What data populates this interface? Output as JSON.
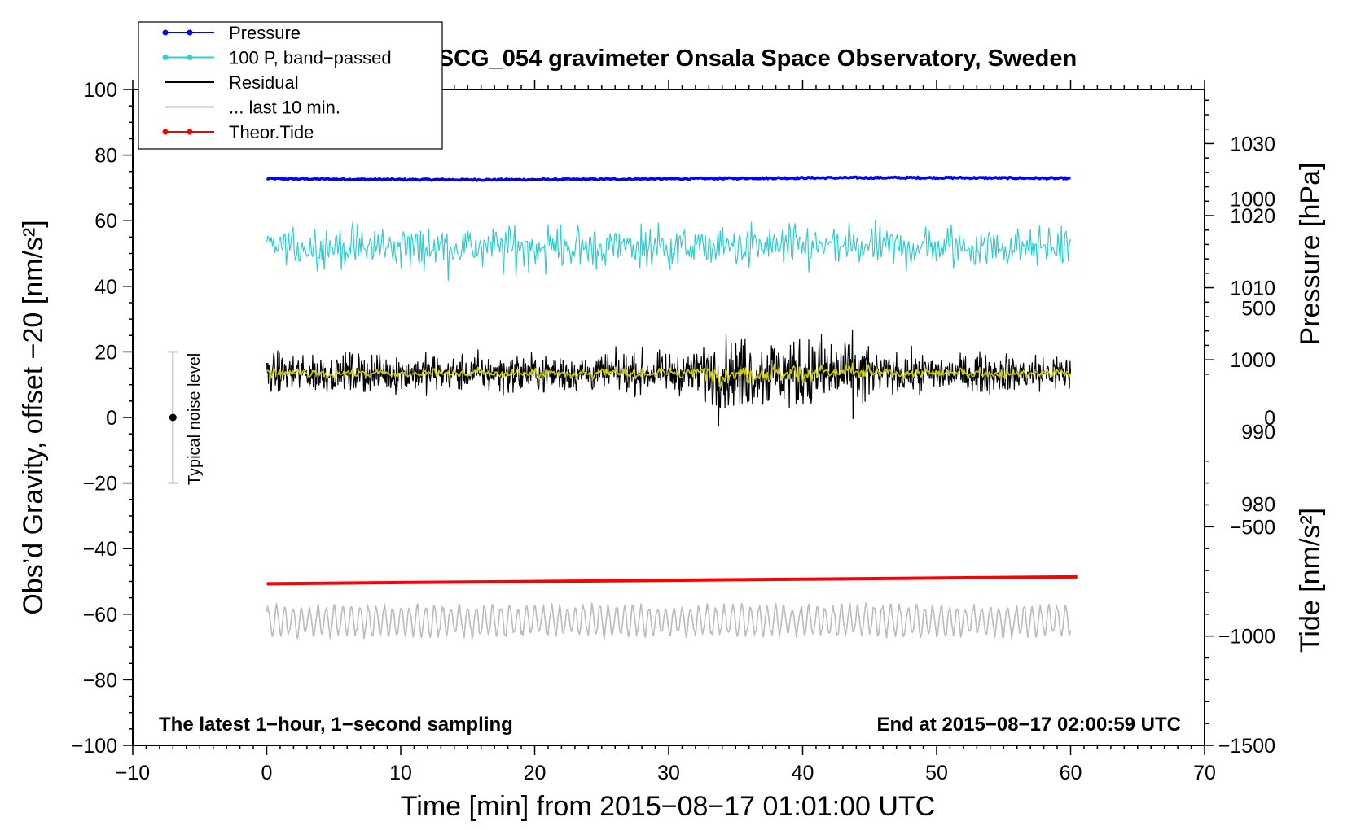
{
  "chart_data": {
    "type": "line",
    "title": "SCG_054 gravimeter Onsala Space Observatory, Sweden",
    "xlabel": "Time [min] from 2015−08−17 01:01:00 UTC",
    "ylabel_left": "Obs’d Gravity, offset −20 [nm/s²]",
    "ylabel_pressure": "Pressure [hPa]",
    "ylabel_tide": "Tide [nm/s²]",
    "xlim": [
      -10,
      70
    ],
    "ylim_left": [
      -100,
      100
    ],
    "ylim_pressure": [
      946.5,
      1037.5
    ],
    "ylim_tide": [
      -1500,
      1500
    ],
    "x_ticks": [
      -10,
      0,
      10,
      20,
      30,
      40,
      50,
      60,
      70
    ],
    "x_tick_labels": [
      "−10",
      "0",
      "10",
      "20",
      "30",
      "40",
      "50",
      "60",
      "70"
    ],
    "y_left_ticks": [
      100,
      80,
      60,
      40,
      20,
      0,
      -20,
      -40,
      -60,
      -80,
      -100
    ],
    "y_left_tick_labels": [
      "100",
      "80",
      "60",
      "40",
      "20",
      "0",
      "−20",
      "−40",
      "−60",
      "−80",
      "−100"
    ],
    "pressure_ticks": [
      1030,
      1020,
      1010,
      1000,
      990,
      980
    ],
    "pressure_tick_labels": [
      "1030",
      "1020",
      "1010",
      "1000",
      "990",
      "980"
    ],
    "tide_ticks": [
      1000,
      500,
      0,
      -500,
      -1000,
      -1500
    ],
    "tide_tick_labels": [
      "1000",
      "500",
      "0",
      "−500",
      "−1000",
      "−1500"
    ],
    "legend": [
      {
        "label": "Pressure",
        "color": "#0000ff",
        "marker": true
      },
      {
        "label": "100 P, band−passed",
        "color": "#33cccc",
        "marker": true
      },
      {
        "label": "Residual",
        "color": "#000000",
        "marker": false
      },
      {
        "label": "... last 10 min.",
        "color": "#bbbbbb",
        "marker": false
      },
      {
        "label": "Theor.Tide",
        "color": "#ff0000",
        "marker": true
      }
    ],
    "series": [
      {
        "name": "Pressure",
        "color": "#0000ff",
        "axis": "left",
        "x_range": [
          0,
          60
        ],
        "level": 72.8,
        "noise": 0.5
      },
      {
        "name": "100 P, band-passed",
        "color": "#33cccc",
        "axis": "left",
        "x_range": [
          0,
          60
        ],
        "level": 52,
        "noise": 4.5,
        "min": 35,
        "max": 63
      },
      {
        "name": "Residual",
        "color": "#000000",
        "axis": "left",
        "x_range": [
          0,
          60
        ],
        "level": 13.5,
        "noise": 4,
        "min": -3,
        "max": 27
      },
      {
        "name": "Residual smoothed",
        "color": "#cccc00",
        "axis": "left",
        "x_range": [
          0,
          60
        ],
        "level": 13.5,
        "noise": 1
      },
      {
        "name": "Theor.Tide",
        "color": "#ff0000",
        "axis": "left",
        "x_range": [
          0,
          60.5
        ],
        "start": -50.7,
        "end": -48.6
      },
      {
        "name": "... last 10 min.",
        "color": "#bbbbbb",
        "axis": "left",
        "x_range": [
          0,
          60
        ],
        "level": -62,
        "min": -71,
        "max": -56
      }
    ],
    "noise_bar": {
      "x": -7,
      "y_center": 0,
      "y_low": -20,
      "y_high": 20,
      "label": "Typical noise level"
    },
    "annotations": {
      "bottom_left": "The latest 1−hour, 1−second sampling",
      "bottom_right": "End at 2015−08−17 02:00:59 UTC"
    }
  }
}
